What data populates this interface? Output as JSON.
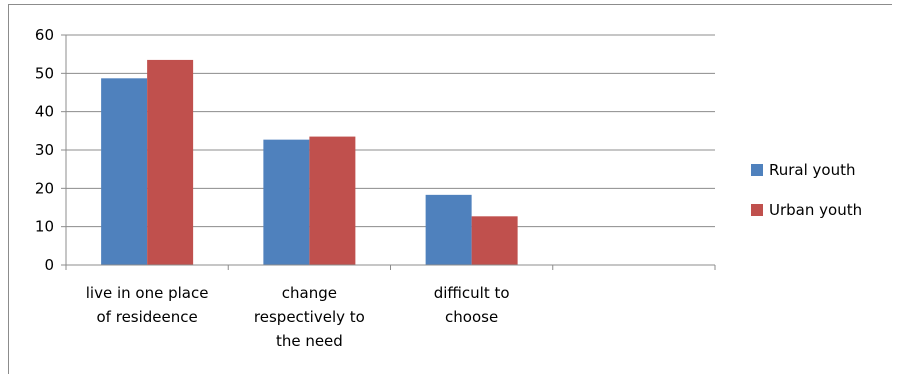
{
  "chart_data": {
    "type": "bar",
    "categories": [
      [
        "live in one place",
        "of resideence"
      ],
      [
        "change",
        "respectively to",
        "the need"
      ],
      [
        "difficult to",
        "choose"
      ],
      [
        ""
      ]
    ],
    "series": [
      {
        "name": "Rural youth",
        "color": "#4f81bd",
        "values": [
          48.7,
          32.7,
          18.3,
          null
        ]
      },
      {
        "name": "Urban youth",
        "color": "#c0504d",
        "values": [
          53.5,
          33.5,
          12.7,
          null
        ]
      }
    ],
    "ylim": [
      0,
      60
    ],
    "yticks": [
      0,
      10,
      20,
      30,
      40,
      50,
      60
    ],
    "grid": true,
    "legend": "right"
  }
}
